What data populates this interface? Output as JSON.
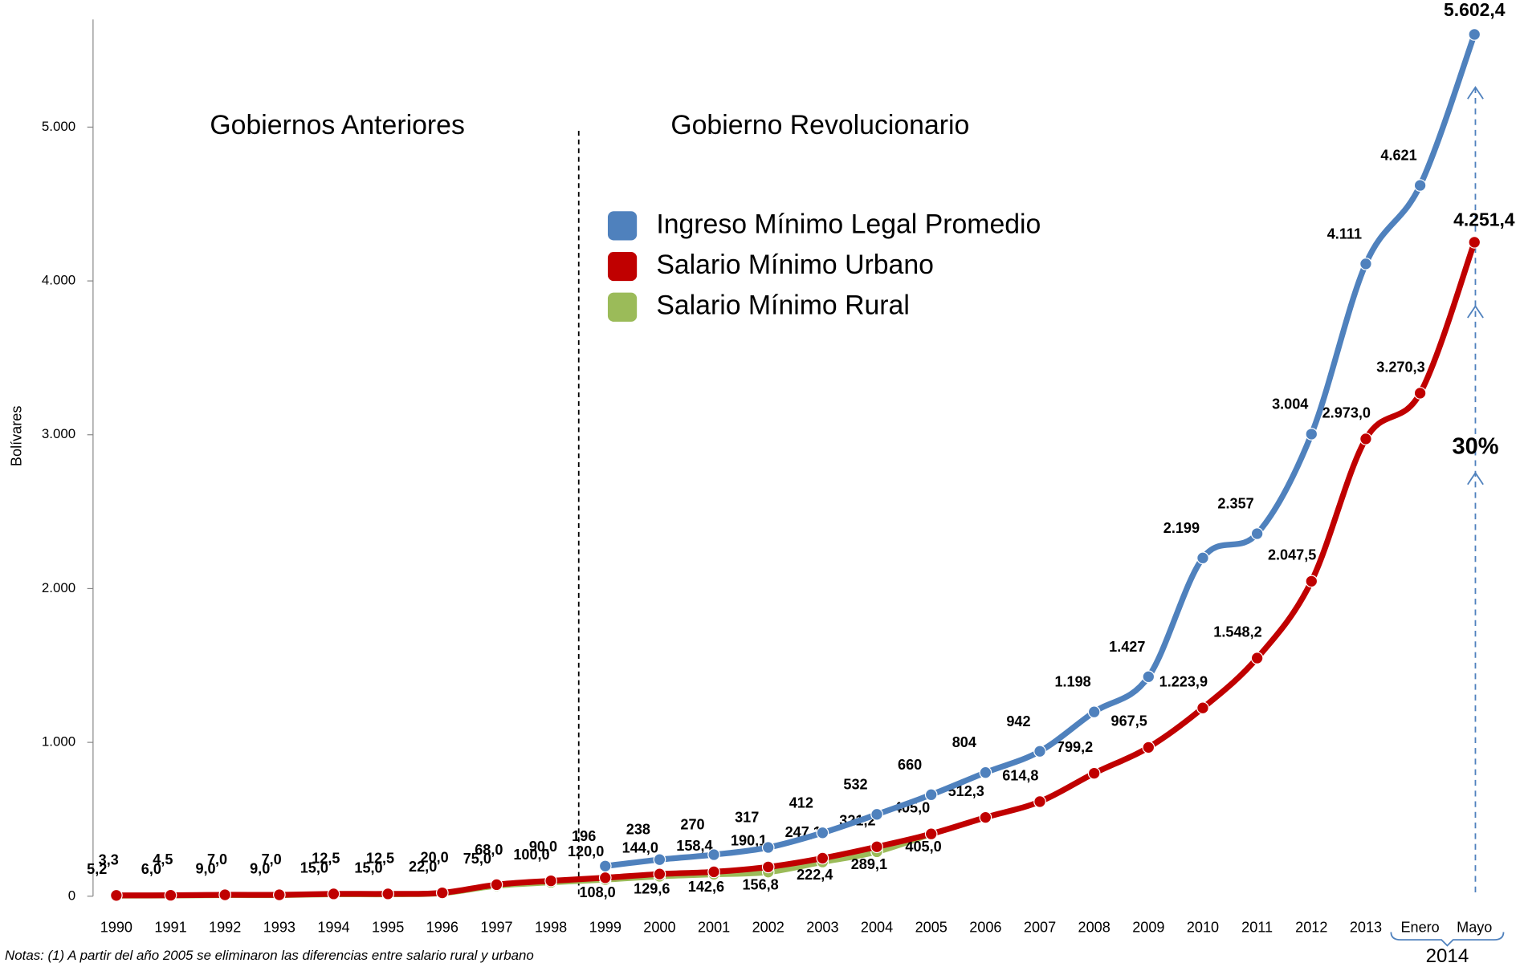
{
  "chart_data": {
    "type": "line",
    "y_label": "Bolívares",
    "categories": [
      "1990",
      "1991",
      "1992",
      "1993",
      "1994",
      "1995",
      "1996",
      "1997",
      "1998",
      "1999",
      "2000",
      "2001",
      "2002",
      "2003",
      "2004",
      "2005",
      "2006",
      "2007",
      "2008",
      "2009",
      "2010",
      "2011",
      "2012",
      "2013",
      "Enero",
      "Mayo"
    ],
    "x_group_label": "2014",
    "ylim": [
      0,
      5700
    ],
    "yticks": [
      0,
      {
        "value": 1000,
        "label": "1.000"
      },
      {
        "value": 2000,
        "label": "2.000"
      },
      {
        "value": 3000,
        "label": "3.000"
      },
      {
        "value": 4000,
        "label": "4.000"
      },
      {
        "value": 5000,
        "label": "5.000"
      }
    ],
    "legend": "upper center",
    "series": [
      {
        "name": "Ingreso Mínimo Legal Promedio",
        "color": "#4f81bd",
        "label_color": "#4f81bd",
        "values": [
          null,
          null,
          null,
          null,
          null,
          null,
          null,
          null,
          null,
          196,
          238,
          270,
          317,
          412,
          532,
          660,
          804,
          942,
          1198,
          1427,
          2199,
          2357,
          3004,
          4111,
          4621,
          5602.4
        ],
        "value_labels": [
          null,
          null,
          null,
          null,
          null,
          null,
          null,
          null,
          null,
          "196",
          "238",
          "270",
          "317",
          "412",
          "532",
          "660",
          "804",
          "942",
          "1.198",
          "1.427",
          "2.199",
          "2.357",
          "3.004",
          "4.111",
          "4.621",
          "5.602,4"
        ]
      },
      {
        "name": "Salario Mínimo Urbano",
        "color": "#c00000",
        "label_color": "#c00000",
        "values": [
          5.2,
          6.0,
          9.0,
          9.0,
          15.0,
          15.0,
          22.0,
          75.0,
          100.0,
          120.0,
          144.0,
          158.4,
          190.1,
          247.1,
          321.2,
          405.0,
          512.3,
          614.8,
          799.2,
          967.5,
          1223.9,
          1548.2,
          2047.5,
          2973.0,
          3270.3,
          4251.4
        ],
        "value_labels": [
          "5,2",
          "6,0",
          "9,0",
          "9,0",
          "15,0",
          "15,0",
          "22,0",
          "75,0",
          "100,0",
          "120,0",
          "144,0",
          "158,4",
          "190,1",
          "247,1",
          "321,2",
          "405,0",
          "512,3",
          "614,8",
          "799,2",
          "967,5",
          "1.223,9",
          "1.548,2",
          "2.047,5",
          "2.973,0",
          "3.270,3",
          "4.251,4"
        ]
      },
      {
        "name": "Salario Mínimo Rural",
        "color": "#9bbb59",
        "label_color": "#77933c",
        "values": [
          3.3,
          4.5,
          7.0,
          7.0,
          12.5,
          12.5,
          20.0,
          68.0,
          90.0,
          108.0,
          129.6,
          142.6,
          156.8,
          222.4,
          289.1,
          405.0,
          null,
          null,
          null,
          null,
          null,
          null,
          null,
          null,
          null,
          null
        ],
        "value_labels": [
          "3,3",
          "4,5",
          "7,0",
          "7,0",
          "12,5",
          "12,5",
          "20,0",
          "68,0",
          "90,0",
          "108,0",
          "129,6",
          "142,6",
          "156,8",
          "222,4",
          "289,1",
          "405,0",
          null,
          null,
          null,
          null,
          null,
          null,
          null,
          null,
          null,
          null
        ]
      }
    ],
    "annotations": [
      "Gobiernos Anteriores",
      "Gobierno Revolucionario",
      "30%"
    ],
    "note": "Notas: (1) A partir del año 2005 se eliminaron las diferencias entre salario rural y urbano"
  }
}
